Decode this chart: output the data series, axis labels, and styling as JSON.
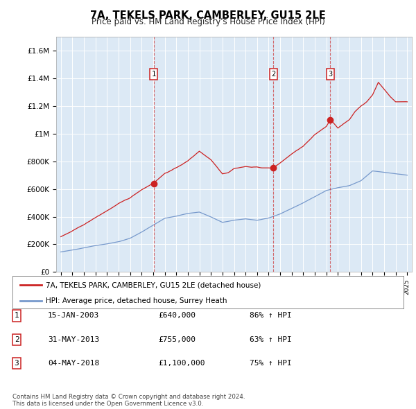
{
  "title": "7A, TEKELS PARK, CAMBERLEY, GU15 2LE",
  "subtitle": "Price paid vs. HM Land Registry's House Price Index (HPI)",
  "plot_bg_color": "#dce9f5",
  "red_line_color": "#cc2222",
  "blue_line_color": "#7799cc",
  "sale_dates": [
    2003.04,
    2013.42,
    2018.34
  ],
  "sale_prices": [
    640000,
    755000,
    1100000
  ],
  "sale_labels": [
    "1",
    "2",
    "3"
  ],
  "legend_label_red": "7A, TEKELS PARK, CAMBERLEY, GU15 2LE (detached house)",
  "legend_label_blue": "HPI: Average price, detached house, Surrey Heath",
  "table_rows": [
    [
      "1",
      "15-JAN-2003",
      "£640,000",
      "86% ↑ HPI"
    ],
    [
      "2",
      "31-MAY-2013",
      "£755,000",
      "63% ↑ HPI"
    ],
    [
      "3",
      "04-MAY-2018",
      "£1,100,000",
      "75% ↑ HPI"
    ]
  ],
  "footer": "Contains HM Land Registry data © Crown copyright and database right 2024.\nThis data is licensed under the Open Government Licence v3.0."
}
